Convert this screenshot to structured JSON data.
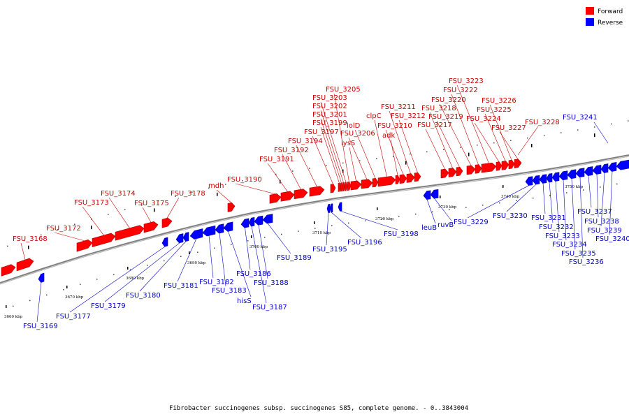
{
  "caption": "Fibrobacter succinogenes subsp. succinogenes S85, complete genome. - 0..3843004",
  "legend": [
    {
      "label": "Forward",
      "color": "#ff0000"
    },
    {
      "label": "Reverse",
      "color": "#0000ff"
    }
  ],
  "colors": {
    "forward": "#ff0000",
    "reverse": "#0000ff",
    "backbone": "#808080"
  },
  "ticks": [
    "3660 kbp",
    "3670 kbp",
    "3680 kbp",
    "3690 kbp",
    "3700 kbp",
    "3710 kbp",
    "3720 kbp",
    "3730 kbp",
    "3740 kbp",
    "3750 kbp"
  ],
  "genes_forward": [
    "FSU_3168",
    "FSU_3172",
    "FSU_3173",
    "FSU_3174",
    "FSU_3175",
    "FSU_3178",
    "mdh",
    "FSU_3190",
    "FSU_3191",
    "FSU_3192",
    "FSU_3194",
    "FSU_3197",
    "FSU_3199",
    "FSU_3201",
    "FSU_3202",
    "FSU_3203",
    "FSU_3205",
    "lysS",
    "FSU_3206",
    "lolD",
    "clpC",
    "adk",
    "FSU_3210",
    "FSU_3211",
    "FSU_3212",
    "FSU_3217",
    "FSU_3218",
    "FSU_3219",
    "FSU_3220",
    "FSU_3222",
    "FSU_3223",
    "FSU_3224",
    "FSU_3225",
    "FSU_3226",
    "FSU_3227",
    "FSU_3228"
  ],
  "genes_reverse": [
    "FSU_3169",
    "FSU_3177",
    "FSU_3179",
    "FSU_3180",
    "FSU_3181",
    "FSU_3182",
    "FSU_3183",
    "hisS",
    "FSU_3186",
    "FSU_3187",
    "FSU_3188",
    "FSU_3189",
    "FSU_3195",
    "FSU_3196",
    "FSU_3198",
    "leuB",
    "ruvB",
    "FSU_3229",
    "FSU_3230",
    "FSU_3231",
    "FSU_3232",
    "FSU_3233",
    "FSU_3234",
    "FSU_3235",
    "FSU_3236",
    "FSU_3237",
    "FSU_3238",
    "FSU_3239",
    "FSU_3240",
    "FSU_3241"
  ]
}
